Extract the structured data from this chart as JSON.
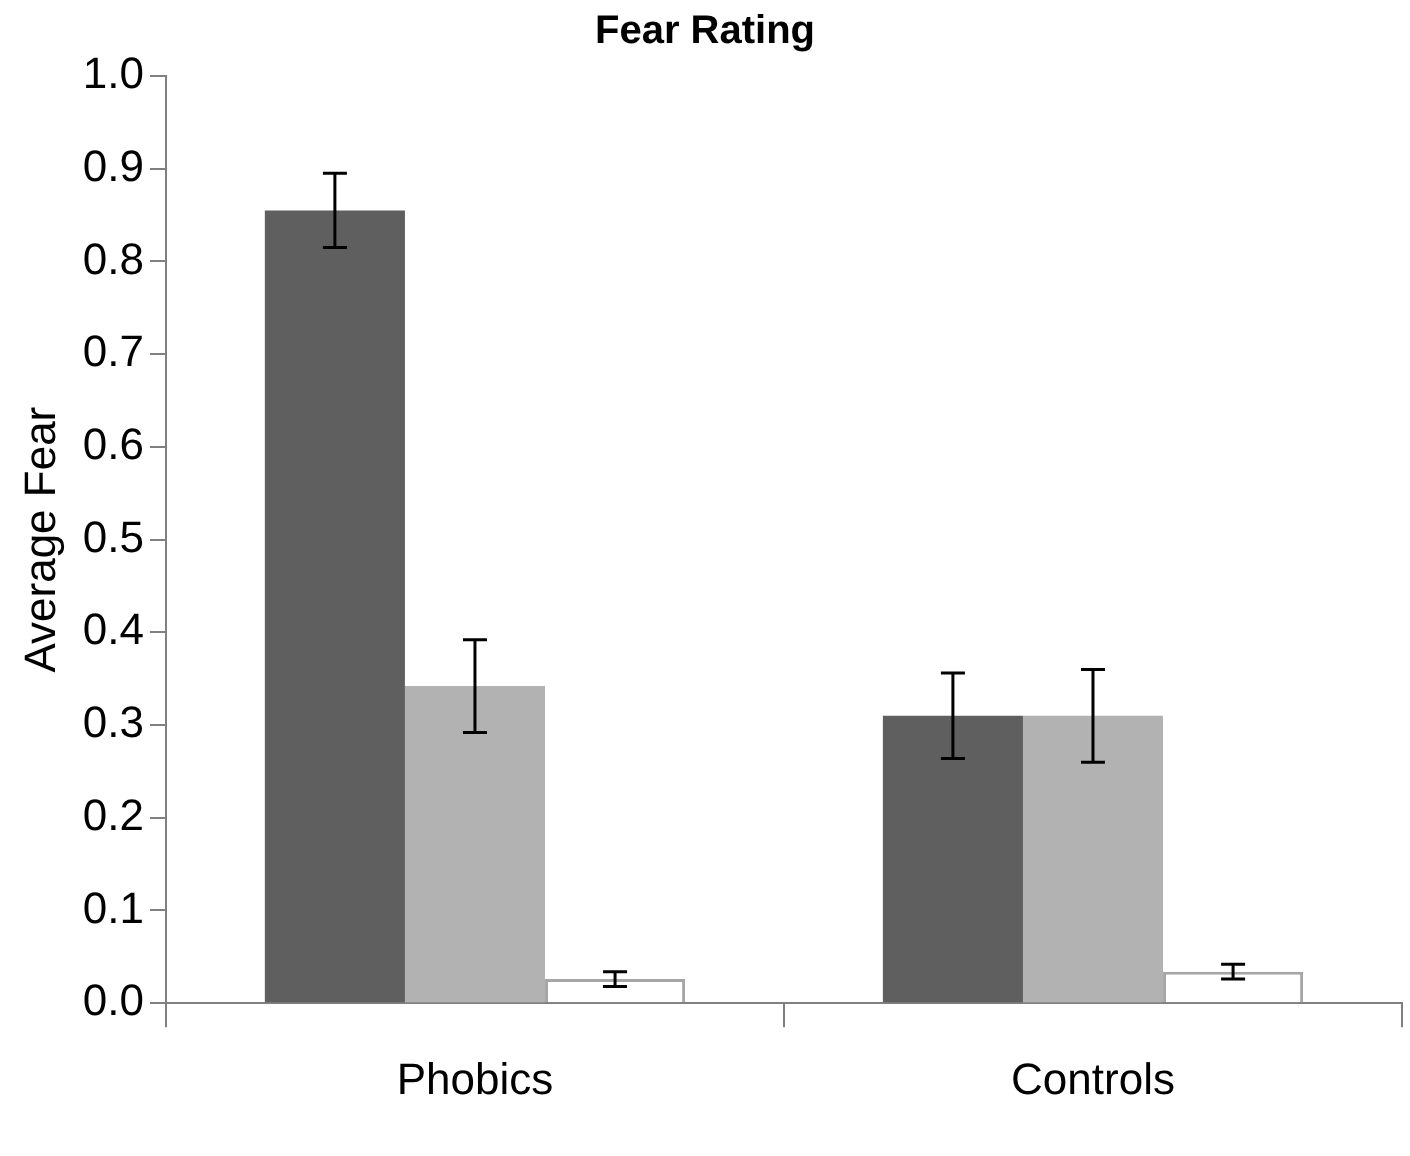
{
  "chart_data": {
    "type": "bar",
    "title": "Fear Rating",
    "ylabel": "Average Fear",
    "categories": [
      "Phobics",
      "Controls"
    ],
    "series": [
      {
        "color": "#5f5f5f",
        "values": [
          0.855,
          0.31
        ],
        "errors": [
          0.04,
          0.046
        ]
      },
      {
        "color": "#b2b2b2",
        "values": [
          0.342,
          0.31
        ],
        "errors": [
          0.05,
          0.05
        ]
      },
      {
        "color": "#ffffff",
        "values": [
          0.026,
          0.034
        ],
        "errors": [
          0.008,
          0.008
        ]
      }
    ],
    "ylim": [
      0,
      1
    ],
    "yticks": [
      {
        "value": 0,
        "label": "0.0"
      },
      {
        "value": 0.1,
        "label": "0.1"
      },
      {
        "value": 0.2,
        "label": "0.2"
      },
      {
        "value": 0.3,
        "label": "0.3"
      },
      {
        "value": 0.4,
        "label": "0.4"
      },
      {
        "value": 0.5,
        "label": "0.5"
      },
      {
        "value": 0.6,
        "label": "0.6"
      },
      {
        "value": 0.7,
        "label": "0.7"
      },
      {
        "value": 0.8,
        "label": "0.8"
      },
      {
        "value": 0.9,
        "label": "0.9"
      },
      {
        "value": 1,
        "label": "1.0"
      }
    ],
    "grid": false,
    "legend": false
  }
}
